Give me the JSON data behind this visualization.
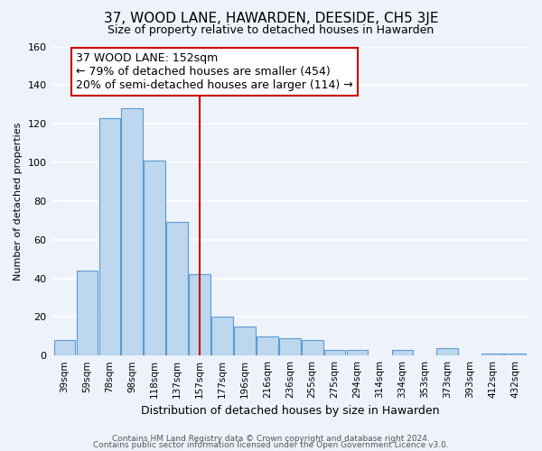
{
  "title": "37, WOOD LANE, HAWARDEN, DEESIDE, CH5 3JE",
  "subtitle": "Size of property relative to detached houses in Hawarden",
  "xlabel": "Distribution of detached houses by size in Hawarden",
  "ylabel": "Number of detached properties",
  "bar_labels": [
    "39sqm",
    "59sqm",
    "78sqm",
    "98sqm",
    "118sqm",
    "137sqm",
    "157sqm",
    "177sqm",
    "196sqm",
    "216sqm",
    "236sqm",
    "255sqm",
    "275sqm",
    "294sqm",
    "314sqm",
    "334sqm",
    "353sqm",
    "373sqm",
    "393sqm",
    "412sqm",
    "432sqm"
  ],
  "bar_values": [
    8,
    44,
    123,
    128,
    101,
    69,
    42,
    20,
    15,
    10,
    9,
    8,
    3,
    3,
    0,
    3,
    0,
    4,
    0,
    1,
    1
  ],
  "bar_color": "#bdd7ee",
  "bar_edge_color": "#5b9bd5",
  "vline_color": "#cc0000",
  "vline_x": 6,
  "annotation_title": "37 WOOD LANE: 152sqm",
  "annotation_line1": "← 79% of detached houses are smaller (454)",
  "annotation_line2": "20% of semi-detached houses are larger (114) →",
  "annotation_box_color": "#ffffff",
  "annotation_box_edge": "#cc0000",
  "ylim": [
    0,
    160
  ],
  "yticks": [
    0,
    20,
    40,
    60,
    80,
    100,
    120,
    140,
    160
  ],
  "footer1": "Contains HM Land Registry data © Crown copyright and database right 2024.",
  "footer2": "Contains public sector information licensed under the Open Government Licence v3.0.",
  "bg_color": "#eef2fa",
  "grid_color": "#ffffff",
  "title_fontsize": 11,
  "subtitle_fontsize": 9,
  "xlabel_fontsize": 9,
  "ylabel_fontsize": 8,
  "tick_fontsize": 7.5,
  "annotation_fontsize": 9,
  "footer_fontsize": 6.5
}
